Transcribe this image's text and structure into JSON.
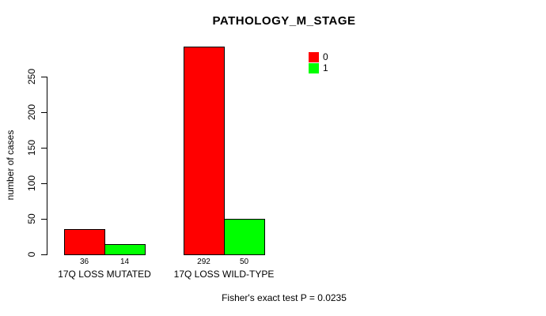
{
  "chart_data": {
    "type": "bar",
    "title": "PATHOLOGY_M_STAGE",
    "ylabel": "number of cases",
    "xlabel": "",
    "categories": [
      "17Q LOSS MUTATED",
      "17Q LOSS WILD-TYPE"
    ],
    "series": [
      {
        "name": "0",
        "color": "#FF0000",
        "values": [
          36,
          292
        ]
      },
      {
        "name": "1",
        "color": "#00FF00",
        "values": [
          14,
          50
        ]
      }
    ],
    "yticks": [
      0,
      50,
      100,
      150,
      200,
      250
    ],
    "ylim": [
      0,
      295
    ],
    "grid": false,
    "legend_position": "inside-top-right",
    "annotation": "Fisher's exact test P = 0.0235"
  }
}
